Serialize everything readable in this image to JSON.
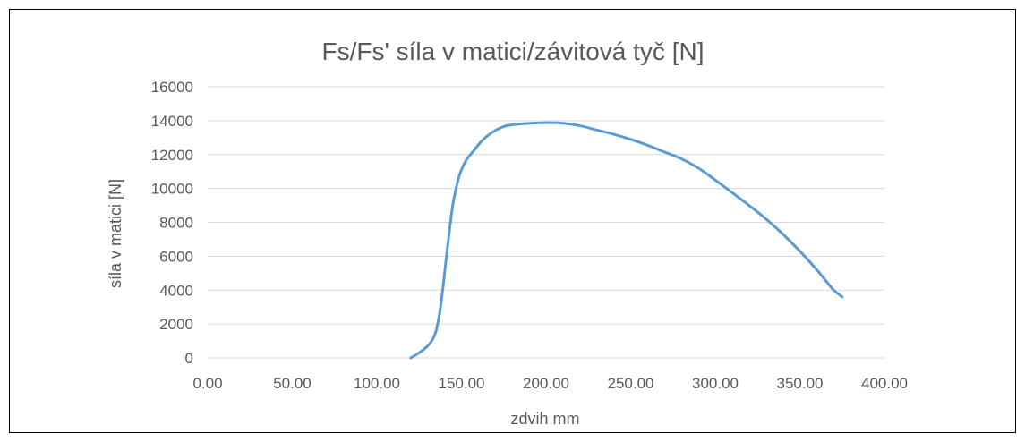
{
  "chart_data": {
    "type": "line",
    "title": "Fs/Fs'  síla v matici/závitová tyč [N]",
    "xlabel": "zdvih mm",
    "ylabel": "síla v matici [N]",
    "xlim": [
      0,
      400
    ],
    "ylim": [
      0,
      16000
    ],
    "xticks": [
      "0.00",
      "50.00",
      "100.00",
      "150.00",
      "200.00",
      "250.00",
      "300.00",
      "350.00",
      "400.00"
    ],
    "yticks": [
      "0",
      "2000",
      "4000",
      "6000",
      "8000",
      "10000",
      "12000",
      "14000",
      "16000"
    ],
    "grid": true,
    "legend": "none",
    "series": [
      {
        "color": "#5b9bd5",
        "x": [
          120,
          125,
          130,
          133,
          135,
          137,
          139,
          141,
          143,
          145,
          148,
          150,
          153,
          157,
          162,
          168,
          175,
          182,
          190,
          200,
          210,
          220,
          230,
          240,
          250,
          260,
          270,
          280,
          290,
          300,
          310,
          320,
          330,
          340,
          350,
          360,
          365,
          370,
          375
        ],
        "y": [
          0,
          300,
          700,
          1100,
          1600,
          2600,
          4100,
          5900,
          7600,
          9100,
          10500,
          11100,
          11700,
          12200,
          12800,
          13300,
          13650,
          13780,
          13840,
          13880,
          13850,
          13700,
          13450,
          13200,
          12900,
          12550,
          12150,
          11750,
          11200,
          10500,
          9750,
          9000,
          8200,
          7300,
          6300,
          5200,
          4600,
          4000,
          3600
        ]
      }
    ]
  }
}
